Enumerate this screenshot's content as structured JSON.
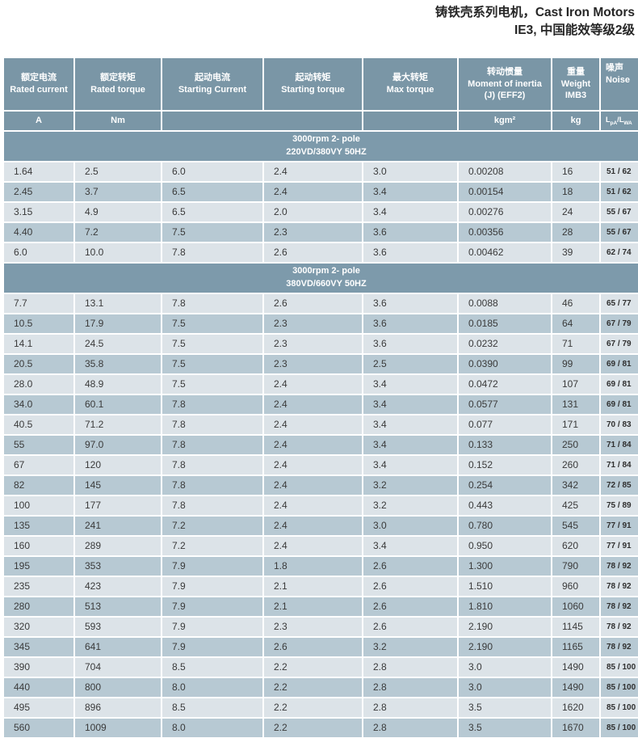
{
  "title": {
    "line1": "铸铁壳系列电机，Cast Iron Motors",
    "line2": "IE3, 中国能效等级2级"
  },
  "colors": {
    "header_bg": "#7A96A6",
    "band_bg": "#7D9AAB",
    "row_light": "#DCE3E8",
    "row_dark": "#B7C9D3",
    "grid_gap": "#FFFFFF",
    "text": "#3A3A3A"
  },
  "table": {
    "columns": [
      {
        "zh": "额定电流",
        "en": "Rated current",
        "unit": "A"
      },
      {
        "zh": "额定转矩",
        "en": "Rated torque",
        "unit": "Nm"
      },
      {
        "zh": "起动电流",
        "en": "Starting Current",
        "unit": ""
      },
      {
        "zh": "起动转矩",
        "en": "Starting torque",
        "unit": ""
      },
      {
        "zh": "最大转矩",
        "en": "Max torque",
        "unit": ""
      },
      {
        "zh": "转动惯量",
        "en": "Moment of inertia (J) (EFF2)",
        "unit": "kgm²"
      },
      {
        "zh": "重量",
        "en": "Weight IMB3",
        "unit": "kg"
      },
      {
        "zh": "噪声",
        "en": "Noise",
        "unit": "LpA/LWA"
      }
    ],
    "noise_unit_parts": {
      "l1": "L",
      "s1": "pA",
      "slash": "/",
      "l2": "L",
      "s2": "WA"
    },
    "sections": [
      {
        "line1": "3000rpm 2- pole",
        "line2": "220VD/380VY  50HZ",
        "rows": [
          [
            "1.64",
            "2.5",
            "6.0",
            "2.4",
            "3.0",
            "0.00208",
            "16",
            "51 / 62"
          ],
          [
            "2.45",
            "3.7",
            "6.5",
            "2.4",
            "3.4",
            "0.00154",
            "18",
            "51 / 62"
          ],
          [
            "3.15",
            "4.9",
            "6.5",
            "2.0",
            "3.4",
            "0.00276",
            "24",
            "55 / 67"
          ],
          [
            "4.40",
            "7.2",
            "7.5",
            "2.3",
            "3.6",
            "0.00356",
            "28",
            "55 / 67"
          ],
          [
            "6.0",
            "10.0",
            "7.8",
            "2.6",
            "3.6",
            "0.00462",
            "39",
            "62 / 74"
          ]
        ]
      },
      {
        "line1": "3000rpm 2- pole",
        "line2": "380VD/660VY  50HZ",
        "rows": [
          [
            "7.7",
            "13.1",
            "7.8",
            "2.6",
            "3.6",
            "0.0088",
            "46",
            "65 / 77"
          ],
          [
            "10.5",
            "17.9",
            "7.5",
            "2.3",
            "3.6",
            "0.0185",
            "64",
            "67 / 79"
          ],
          [
            "14.1",
            "24.5",
            "7.5",
            "2.3",
            "3.6",
            "0.0232",
            "71",
            "67 / 79"
          ],
          [
            "20.5",
            "35.8",
            "7.5",
            "2.3",
            "2.5",
            "0.0390",
            "99",
            "69 / 81"
          ],
          [
            "28.0",
            "48.9",
            "7.5",
            "2.4",
            "3.4",
            "0.0472",
            "107",
            "69 / 81"
          ],
          [
            "34.0",
            "60.1",
            "7.8",
            "2.4",
            "3.4",
            "0.0577",
            "131",
            "69 / 81"
          ],
          [
            "40.5",
            "71.2",
            "7.8",
            "2.4",
            "3.4",
            "0.077",
            "171",
            "70 / 83"
          ],
          [
            "55",
            "97.0",
            "7.8",
            "2.4",
            "3.4",
            "0.133",
            "250",
            "71 / 84"
          ],
          [
            "67",
            "120",
            "7.8",
            "2.4",
            "3.4",
            "0.152",
            "260",
            "71 / 84"
          ],
          [
            "82",
            "145",
            "7.8",
            "2.4",
            "3.2",
            "0.254",
            "342",
            "72 / 85"
          ],
          [
            "100",
            "177",
            "7.8",
            "2.4",
            "3.2",
            "0.443",
            "425",
            "75 / 89"
          ],
          [
            "135",
            "241",
            "7.2",
            "2.4",
            "3.0",
            "0.780",
            "545",
            "77 / 91"
          ],
          [
            "160",
            "289",
            "7.2",
            "2.4",
            "3.4",
            "0.950",
            "620",
            "77 / 91"
          ],
          [
            "195",
            "353",
            "7.9",
            "1.8",
            "2.6",
            "1.300",
            "790",
            "78 / 92"
          ],
          [
            "235",
            "423",
            "7.9",
            "2.1",
            "2.6",
            "1.510",
            "960",
            "78 / 92"
          ],
          [
            "280",
            "513",
            "7.9",
            "2.1",
            "2.6",
            "1.810",
            "1060",
            "78 / 92"
          ],
          [
            "320",
            "593",
            "7.9",
            "2.3",
            "2.6",
            "2.190",
            "1145",
            "78 / 92"
          ],
          [
            "345",
            "641",
            "7.9",
            "2.6",
            "3.2",
            "2.190",
            "1165",
            "78 / 92"
          ],
          [
            "390",
            "704",
            "8.5",
            "2.2",
            "2.8",
            "3.0",
            "1490",
            "85 / 100"
          ],
          [
            "440",
            "800",
            "8.0",
            "2.2",
            "2.8",
            "3.0",
            "1490",
            "85 / 100"
          ],
          [
            "495",
            "896",
            "8.5",
            "2.2",
            "2.8",
            "3.5",
            "1620",
            "85 / 100"
          ],
          [
            "560",
            "1009",
            "8.0",
            "2.2",
            "2.8",
            "3.5",
            "1670",
            "85 / 100"
          ]
        ]
      }
    ]
  }
}
